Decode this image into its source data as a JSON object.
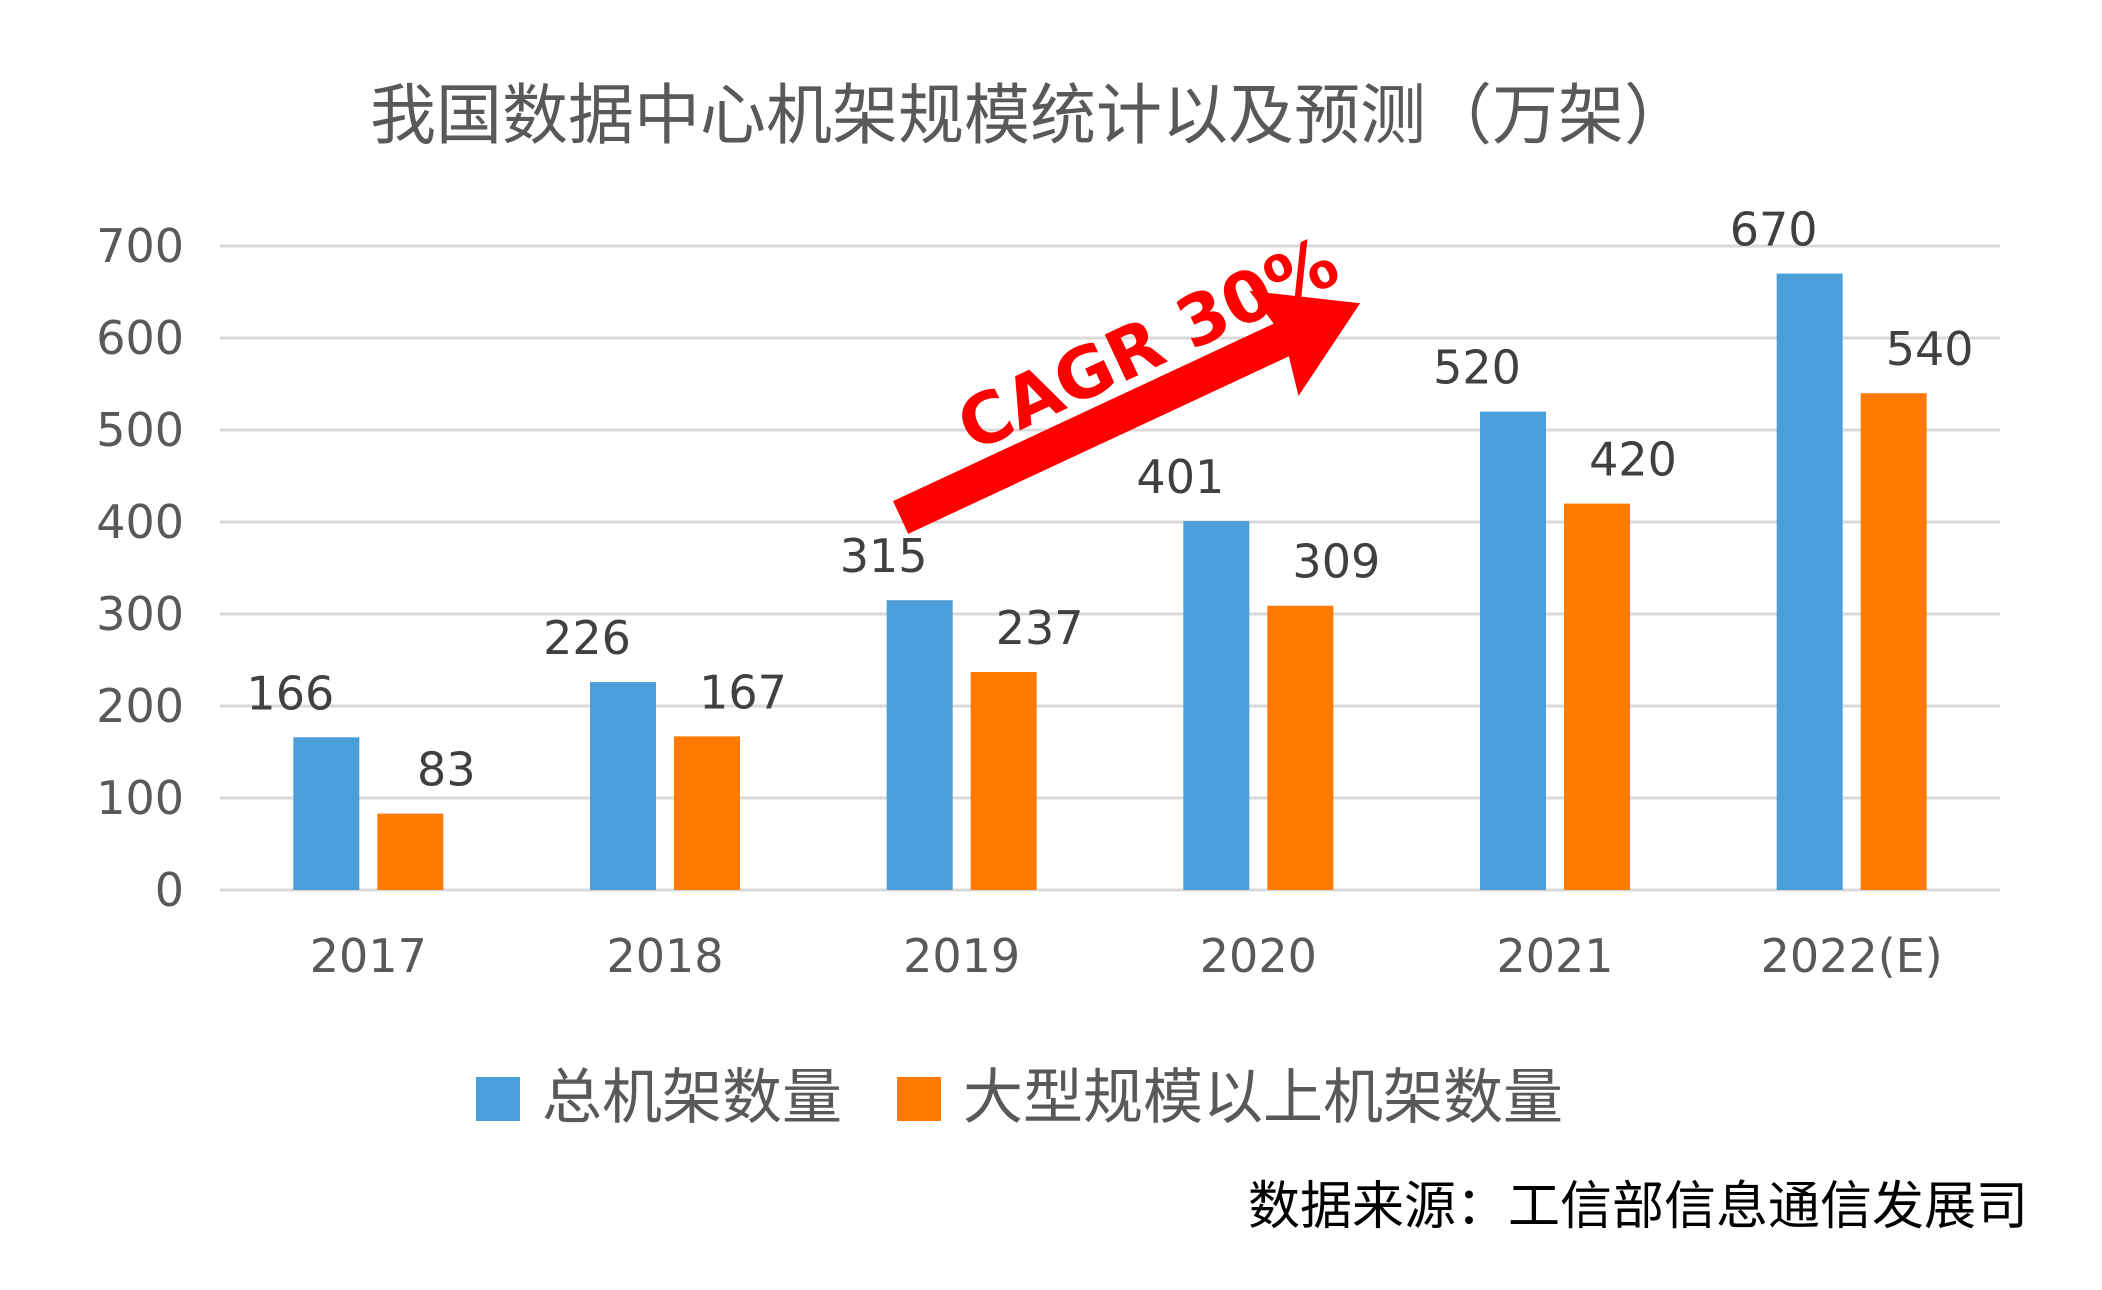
{
  "chart_data": {
    "type": "bar",
    "title": "我国数据中心机架规模统计以及预测（万架）",
    "categories": [
      "2017",
      "2018",
      "2019",
      "2020",
      "2021",
      "2022(E)"
    ],
    "series": [
      {
        "name": "总机架数量",
        "values": [
          166,
          226,
          315,
          401,
          520,
          670
        ],
        "color": "#4A9ED9"
      },
      {
        "name": "大型规模以上机架数量",
        "values": [
          83,
          167,
          237,
          309,
          420,
          540
        ],
        "color": "#FF7A00"
      }
    ],
    "ylim": [
      0,
      700
    ],
    "yticks": [
      0,
      100,
      200,
      300,
      400,
      500,
      600,
      700
    ],
    "grid": true,
    "legend_position": "bottom",
    "annotation": {
      "text": "CAGR 30%",
      "color": "#FF0000"
    },
    "source": "数据来源：工信部信息通信发展司"
  }
}
